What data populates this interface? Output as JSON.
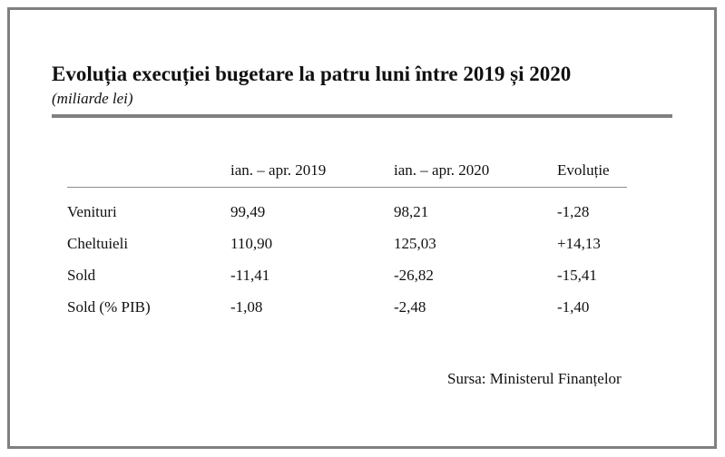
{
  "title": "Evoluția execuției bugetare la patru luni între 2019 și 2020",
  "subtitle": "(miliarde lei)",
  "source": "Sursa: Ministerul Finanțelor",
  "chart_data": {
    "type": "table",
    "columns": [
      "",
      "ian. – apr. 2019",
      "ian. – apr. 2020",
      "Evoluție"
    ],
    "rows": [
      {
        "label": "Venituri",
        "cells": [
          "99,49",
          "98,21",
          "-1,28"
        ],
        "values": [
          99.49,
          98.21,
          -1.28
        ]
      },
      {
        "label": "Cheltuieli",
        "cells": [
          "110,90",
          "125,03",
          "+14,13"
        ],
        "values": [
          110.9,
          125.03,
          14.13
        ]
      },
      {
        "label": "Sold",
        "cells": [
          "-11,41",
          "-26,82",
          "-15,41"
        ],
        "values": [
          -11.41,
          -26.82,
          -15.41
        ]
      },
      {
        "label": "Sold (% PIB)",
        "cells": [
          "-1,08",
          "-2,48",
          "-1,40"
        ],
        "values": [
          -1.08,
          -2.48,
          -1.4
        ]
      }
    ]
  }
}
